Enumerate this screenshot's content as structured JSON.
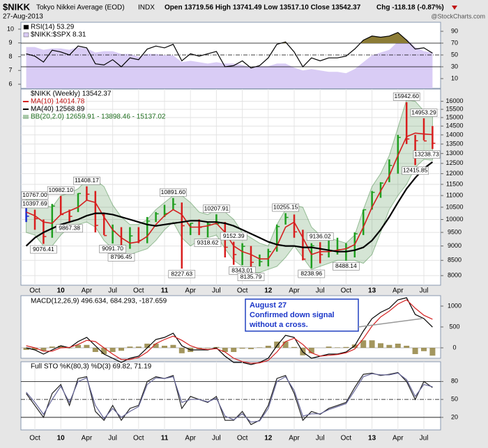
{
  "header": {
    "symbol": "$NIKK",
    "name": "Tokyo Nikkei Average (EOD)",
    "exchange": "INDX",
    "date": "27-Aug-2013",
    "quote": "Open 13719.56 High 13741.49 Low 13517.10 Close 13542.37",
    "change": "Chg -118.18 (-0.87%)",
    "credit": "@StockCharts.com"
  },
  "chart_data": [
    {
      "type": "line",
      "series": [
        {
          "name": "RSI(14) 53.29",
          "color": "#000000",
          "values": [
            52,
            48,
            38,
            58,
            55,
            50,
            65,
            62,
            35,
            33,
            42,
            30,
            45,
            42,
            60,
            65,
            62,
            68,
            40,
            52,
            48,
            52,
            56,
            30,
            32,
            40,
            28,
            32,
            45,
            68,
            72,
            55,
            30,
            45,
            40,
            45,
            45,
            48,
            60,
            75,
            82,
            80,
            82,
            88,
            75,
            60,
            62,
            53
          ]
        },
        {
          "name": "$NIKK:$SPX 8.31",
          "color": "#d9ccf5",
          "axis": "y2",
          "values": [
            8.7,
            8.7,
            8.5,
            8.6,
            8.6,
            8.5,
            8.7,
            8.6,
            8.3,
            8.4,
            8.4,
            8.2,
            8.2,
            8.0,
            8.2,
            8.2,
            8.1,
            8.1,
            7.6,
            7.7,
            7.6,
            7.5,
            7.6,
            7.5,
            7.5,
            7.4,
            7.2,
            7.3,
            7.3,
            7.5,
            7.5,
            7.2,
            7.0,
            7.1,
            7.0,
            6.9,
            6.9,
            6.8,
            7.1,
            7.6,
            8.1,
            8.3,
            8.5,
            9.1,
            9.3,
            8.7,
            8.4,
            8.31
          ]
        }
      ],
      "ylim": [
        -6.5,
        105.3
      ],
      "yticks": [
        10,
        30,
        50,
        70,
        90
      ],
      "y2lim": [
        5.7,
        10.5
      ],
      "y2ticks": [
        6,
        7,
        8,
        9,
        10
      ],
      "levels": [
        70,
        50,
        30
      ],
      "overbought_color": "#8c7c36"
    },
    {
      "type": "hlc",
      "title": "$NIKK (Weekly) 13542.37",
      "categories": [
        null,
        "Oct",
        null,
        null,
        "10",
        null,
        null,
        "Apr",
        null,
        null,
        "Jul",
        null,
        null,
        "Oct",
        null,
        null,
        "11",
        null,
        null,
        "Apr",
        null,
        null,
        "Jul",
        null,
        null,
        "Oct",
        null,
        null,
        "12",
        null,
        null,
        "Apr",
        null,
        null,
        "Jul",
        null,
        null,
        "Oct",
        null,
        null,
        "13",
        null,
        null,
        "Apr",
        null,
        null,
        "Jul",
        null
      ],
      "high": [
        10767,
        10397,
        10000,
        10638,
        10982,
        10400,
        11100,
        11408,
        11200,
        10250,
        9800,
        9700,
        9700,
        9700,
        10100,
        10300,
        10600,
        10891,
        10700,
        9850,
        10000,
        9900,
        10207,
        9900,
        9152,
        9100,
        9000,
        8700,
        8900,
        9800,
        10255,
        10200,
        9600,
        9100,
        9136,
        9200,
        9300,
        9100,
        9500,
        10400,
        11200,
        11600,
        12700,
        14000,
        15942,
        14000,
        14953,
        14500
      ],
      "low": [
        9900,
        9600,
        9076,
        9300,
        10200,
        9867,
        10300,
        10800,
        9500,
        9400,
        9091,
        8796,
        8900,
        9100,
        9100,
        9900,
        10100,
        10400,
        8227,
        9400,
        9400,
        9318,
        9800,
        8600,
        8350,
        8343,
        8135,
        8300,
        8300,
        8800,
        9800,
        9300,
        8500,
        8238,
        8400,
        8600,
        8700,
        8488,
        8600,
        9400,
        10400,
        10900,
        11600,
        12000,
        13500,
        12415,
        13700,
        13238
      ],
      "close": [
        10133,
        10034,
        9345,
        10546,
        10198,
        10126,
        11089,
        11057,
        9768,
        9382,
        9537,
        8824,
        9369,
        9202,
        9937,
        10228,
        10237,
        10624,
        9755,
        9849,
        9693,
        9816,
        9833,
        8955,
        8700,
        8988,
        8434,
        8455,
        8802,
        9723,
        10083,
        9520,
        8542,
        9006,
        8695,
        8839,
        8870,
        8928,
        9446,
        10395,
        11139,
        11559,
        12398,
        13861,
        13775,
        13677,
        13668,
        13542
      ],
      "up_color": "#1f9e1f",
      "down_color": "#d81e1e",
      "bar_color": "#1c2fd0",
      "series": [
        {
          "name": "MA(10) 14014.78",
          "color": "#d42020",
          "values": [
            10300,
            10150,
            9900,
            9850,
            10200,
            10350,
            10500,
            10800,
            10700,
            10100,
            9600,
            9300,
            9100,
            9150,
            9350,
            9800,
            10150,
            10400,
            10200,
            9700,
            9700,
            9750,
            9850,
            9500,
            9000,
            8800,
            8700,
            8550,
            8550,
            9000,
            9700,
            9900,
            9300,
            8700,
            8800,
            8800,
            8850,
            8900,
            9050,
            9700,
            10500,
            11200,
            11900,
            12900,
            13900,
            14100,
            14050,
            14015
          ]
        },
        {
          "name": "MA(40) 12568.89",
          "color": "#000000",
          "values": [
            9000,
            9300,
            9500,
            9650,
            9800,
            9900,
            10000,
            10150,
            10250,
            10250,
            10200,
            10100,
            10000,
            9900,
            9800,
            9750,
            9800,
            9850,
            9900,
            9950,
            9950,
            9900,
            9900,
            9850,
            9750,
            9600,
            9450,
            9300,
            9150,
            9050,
            9000,
            9000,
            8950,
            8950,
            8900,
            8850,
            8800,
            8800,
            8850,
            8950,
            9200,
            9600,
            10100,
            10700,
            11300,
            11800,
            12250,
            12569
          ]
        }
      ],
      "bands": {
        "name": "BB(20,2.0) 12659.91 - 13898.46 - 15137.02",
        "color": "#2e7d2e",
        "upper": [
          11000,
          10900,
          10600,
          10500,
          11000,
          11100,
          11300,
          11700,
          11700,
          11400,
          10600,
          10100,
          9800,
          9800,
          10000,
          10400,
          10700,
          11000,
          11000,
          10700,
          10300,
          10200,
          10400,
          10300,
          10000,
          9500,
          9300,
          9100,
          9000,
          9800,
          10400,
          10600,
          10500,
          9700,
          9400,
          9300,
          9200,
          9100,
          9400,
          10400,
          11400,
          12000,
          12900,
          14400,
          16100,
          16000,
          15400,
          15137
        ],
        "lower": [
          9500,
          9400,
          9000,
          9000,
          9400,
          9700,
          9800,
          9900,
          9700,
          9200,
          8900,
          8700,
          8700,
          8800,
          8900,
          9200,
          9600,
          9900,
          9300,
          9000,
          9200,
          9300,
          9400,
          8900,
          8500,
          8300,
          8100,
          8100,
          8200,
          8300,
          8600,
          9000,
          8600,
          8200,
          8300,
          8400,
          8500,
          8500,
          8500,
          8400,
          8700,
          9500,
          10400,
          11000,
          11500,
          12300,
          12700,
          12660
        ]
      },
      "point_labels": [
        "10767.00",
        "10397.69",
        "10982.10",
        "11408.17",
        "9867.38",
        "9076.41",
        "9091.70",
        "8796.45",
        "10891.60",
        "8227.63",
        "10207.91",
        "9318.62",
        "9152.39",
        "8343.01",
        "8135.79",
        "10255.15",
        "9136.02",
        "8238.96",
        "8488.14",
        "15942.60",
        "14953.29",
        "13238.73",
        "12415.85"
      ],
      "log_scale": true,
      "grid": true,
      "ylim": [
        7700,
        16800
      ],
      "yticks": [
        8000,
        8500,
        9000,
        9500,
        10000,
        10500,
        11000,
        11500,
        12000,
        12500,
        13000,
        13500,
        14000,
        14500,
        15000,
        15500,
        16000
      ]
    },
    {
      "type": "macd",
      "legend": "MACD(12,26,9) 496.634, 684.293, -187.659",
      "series": [
        {
          "color": "#000000",
          "values": [
            0,
            -50,
            -150,
            -50,
            50,
            0,
            150,
            250,
            50,
            -150,
            -250,
            -350,
            -250,
            -200,
            0,
            200,
            250,
            350,
            50,
            -50,
            -50,
            -50,
            0,
            -200,
            -350,
            -350,
            -400,
            -350,
            -250,
            50,
            300,
            250,
            -100,
            -250,
            -200,
            -150,
            -150,
            -100,
            50,
            400,
            700,
            850,
            950,
            1150,
            1200,
            800,
            700,
            496.634
          ]
        },
        {
          "color": "#d42020",
          "values": [
            50,
            0,
            -80,
            -80,
            0,
            10,
            80,
            180,
            150,
            0,
            -150,
            -280,
            -280,
            -230,
            -100,
            100,
            200,
            280,
            180,
            50,
            -20,
            -40,
            -20,
            -100,
            -250,
            -330,
            -370,
            -360,
            -300,
            -100,
            150,
            230,
            80,
            -120,
            -200,
            -180,
            -160,
            -120,
            -30,
            220,
            520,
            740,
            880,
            1050,
            1150,
            950,
            780,
            684.293
          ]
        }
      ],
      "histogram": {
        "color": "#8c7c36",
        "values": [
          -50,
          -50,
          -70,
          30,
          50,
          -10,
          70,
          70,
          -100,
          -150,
          -100,
          -70,
          30,
          30,
          100,
          100,
          50,
          70,
          -130,
          -100,
          -30,
          -10,
          20,
          -100,
          -100,
          -20,
          -30,
          10,
          50,
          150,
          150,
          20,
          -180,
          -130,
          0,
          30,
          10,
          20,
          80,
          180,
          180,
          110,
          70,
          100,
          50,
          -150,
          -80,
          -187.659
        ]
      },
      "annotation": [
        "August 27",
        "Confirmed down  signal",
        "without a cross."
      ],
      "ylim": [
        -250,
        1250
      ],
      "yticks": [
        0,
        500,
        1000
      ]
    },
    {
      "type": "line",
      "legend": "Full STO %K(80,3) %D(3) 69.82, 71.19",
      "categories": [
        null,
        "Oct",
        null,
        null,
        "10",
        null,
        null,
        "Apr",
        null,
        null,
        "Jul",
        null,
        null,
        "Oct",
        null,
        null,
        "11",
        null,
        null,
        "Apr",
        null,
        null,
        "Jul",
        null,
        null,
        "Oct",
        null,
        null,
        "12",
        null,
        null,
        "Apr",
        null,
        null,
        "Jul",
        null,
        null,
        "Oct",
        null,
        null,
        "13",
        null,
        null,
        "Apr",
        null,
        null,
        "Jul",
        null
      ],
      "series": [
        {
          "color": "#222222",
          "values": [
            60,
            40,
            20,
            60,
            75,
            40,
            85,
            88,
            30,
            15,
            40,
            15,
            35,
            40,
            80,
            88,
            85,
            90,
            35,
            55,
            50,
            45,
            55,
            15,
            15,
            30,
            8,
            15,
            40,
            85,
            90,
            60,
            15,
            30,
            25,
            35,
            40,
            45,
            70,
            92,
            94,
            90,
            92,
            95,
            80,
            50,
            80,
            69.82
          ]
        },
        {
          "color": "#666699",
          "values": [
            62,
            45,
            25,
            50,
            72,
            45,
            80,
            86,
            40,
            18,
            35,
            20,
            30,
            38,
            75,
            86,
            85,
            88,
            45,
            50,
            50,
            46,
            52,
            22,
            16,
            26,
            12,
            14,
            35,
            80,
            88,
            65,
            22,
            26,
            26,
            33,
            38,
            43,
            65,
            88,
            93,
            91,
            91,
            94,
            83,
            55,
            75,
            71.19
          ]
        }
      ],
      "ylim": [
        -1,
        113
      ],
      "yticks": [
        20,
        50,
        80
      ],
      "levels": [
        80,
        50,
        20
      ]
    }
  ]
}
